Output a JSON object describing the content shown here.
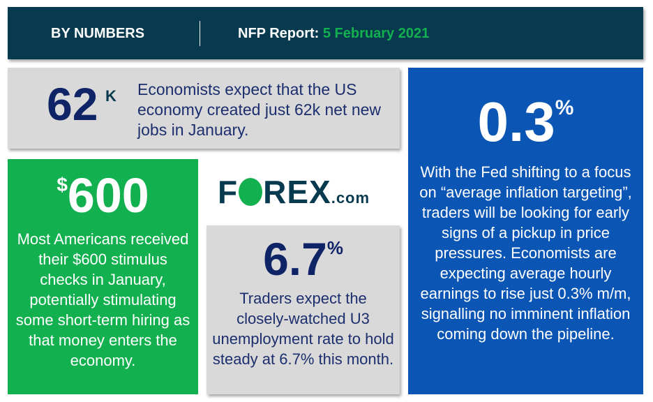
{
  "header": {
    "title": "BY NUMBERS",
    "report_label": "NFP Report:",
    "report_date": "5 February 2021"
  },
  "jobs": {
    "value": "62",
    "unit": "K",
    "text": "Economists expect that the US economy created just 62k net new jobs in January."
  },
  "earnings": {
    "value": "0.3",
    "unit": "%",
    "text": "With the Fed shifting to a focus on “average inflation targeting”, traders will be looking for early signs of a pickup in price pressures. Economists are expecting average hourly earnings to rise just 0.3% m/m, signalling no imminent inflation coming down the pipeline."
  },
  "stimulus": {
    "prefix": "$",
    "value": "600",
    "text": "Most Americans received their $600 stimulus checks in January, potentially stimulating some short-term hiring as that money enters the economy."
  },
  "logo": {
    "text": "FOREX.com",
    "part1": "F",
    "part2": "REX",
    "suffix": ".com"
  },
  "unemployment": {
    "value": "6.7",
    "unit": "%",
    "text": "Traders expect the closely-watched U3 unemployment rate to hold steady at 6.7% this month."
  },
  "colors": {
    "header": "#073a4e",
    "green": "#12b04f",
    "blue": "#0b56b5",
    "gray": "#d9d9d9",
    "navy": "#0f2467"
  }
}
